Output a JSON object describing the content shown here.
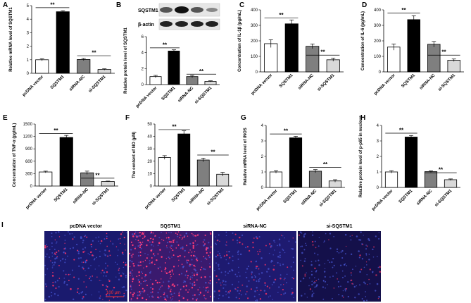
{
  "figure": {
    "colors": {
      "pcDNA vector": "#ffffff",
      "SQSTM1": "#000000",
      "siRNA-NC": "#7f7f7f",
      "si-SQSTM1": "#d9d9d9"
    },
    "significance_mark": "**",
    "blot": {
      "labels": [
        "SQSTM1",
        "β-actin"
      ]
    },
    "images": {
      "letter": "I",
      "labels": [
        "pcDNA vector",
        "SQSTM1",
        "siRNA-NC",
        "si-SQSTM1"
      ],
      "scale_bar": "100 μm"
    }
  },
  "chart_data": [
    {
      "panel": "A",
      "type": "bar",
      "categories": [
        "pcDNA vector",
        "SQSTM1",
        "siRNA-NC",
        "si-SQSTM1"
      ],
      "values": [
        1.0,
        4.55,
        1.02,
        0.28
      ],
      "errors": [
        0.08,
        0.08,
        0.08,
        0.05
      ],
      "ylabel": "Relative mRNA level of SQSTM1",
      "ylim": [
        0,
        5
      ],
      "yticks": [
        0,
        1,
        2,
        3,
        4,
        5
      ],
      "ytick_labels": [
        "0",
        "1",
        "2",
        "3",
        "4",
        "5"
      ],
      "sig": [
        [
          0,
          1,
          4.85
        ],
        [
          2,
          3,
          1.3
        ]
      ]
    },
    {
      "panel": "B",
      "type": "bar",
      "categories": [
        "pcDNA vector",
        "SQSTM1",
        "siRNA-NC",
        "si-SQSTM1"
      ],
      "values": [
        1.0,
        4.2,
        1.0,
        0.4
      ],
      "errors": [
        0.15,
        0.15,
        0.15,
        0.07
      ],
      "ylabel": "Relative protein level of SQSTM1",
      "ylim": [
        0,
        6
      ],
      "yticks": [
        0,
        2,
        4,
        6
      ],
      "ytick_labels": [
        "0",
        "2",
        "4",
        "6"
      ],
      "sig": [
        [
          0,
          1,
          4.6
        ],
        [
          2,
          3,
          1.3
        ]
      ]
    },
    {
      "panel": "C",
      "type": "bar",
      "categories": [
        "pcDNA vector",
        "SQSTM1",
        "siRNA-NC",
        "si-SQSTM1"
      ],
      "values": [
        182,
        310,
        165,
        78
      ],
      "errors": [
        25,
        25,
        15,
        10
      ],
      "ylabel": "Concentration of IL-1β (pg/mL)",
      "ylim": [
        0,
        400
      ],
      "yticks": [
        0,
        100,
        200,
        300,
        400
      ],
      "ytick_labels": [
        "0",
        "100",
        "200",
        "300",
        "400"
      ],
      "sig": [
        [
          0,
          1,
          348
        ],
        [
          2,
          3,
          108
        ]
      ]
    },
    {
      "panel": "D",
      "type": "bar",
      "categories": [
        "pcDNA vector",
        "SQSTM1",
        "siRNA-NC",
        "si-SQSTM1"
      ],
      "values": [
        160,
        337,
        178,
        75
      ],
      "errors": [
        20,
        25,
        18,
        8
      ],
      "ylabel": "Concentration of IL-6 (pg/mL)",
      "ylim": [
        0,
        400
      ],
      "yticks": [
        0,
        100,
        200,
        300,
        400
      ],
      "ytick_labels": [
        "0",
        "100",
        "200",
        "300",
        "400"
      ],
      "sig": [
        [
          0,
          1,
          380
        ],
        [
          2,
          3,
          108
        ]
      ]
    },
    {
      "panel": "E",
      "type": "bar",
      "categories": [
        "pcDNA vector",
        "SQSTM1",
        "siRNA-NC",
        "si-SQSTM1"
      ],
      "values": [
        340,
        1175,
        320,
        110
      ],
      "errors": [
        20,
        50,
        40,
        10
      ],
      "ylabel": "Concentration of TNF-α (pg/mL)",
      "ylim": [
        0,
        1500
      ],
      "yticks": [
        0,
        300,
        600,
        900,
        1200,
        1500
      ],
      "ytick_labels": [
        "0",
        "300",
        "600",
        "900",
        "1200",
        "1500"
      ],
      "sig": [
        [
          0,
          1,
          1270
        ],
        [
          2,
          3,
          190
        ]
      ]
    },
    {
      "panel": "F",
      "type": "bar",
      "categories": [
        "pcDNA vector",
        "SQSTM1",
        "siRNA-NC",
        "si-SQSTM1"
      ],
      "values": [
        23,
        42,
        21,
        9.5
      ],
      "errors": [
        1.5,
        2.5,
        1.5,
        1.5
      ],
      "ylabel": "The content of NO (μM)",
      "ylim": [
        0,
        50
      ],
      "yticks": [
        0,
        10,
        20,
        30,
        40,
        50
      ],
      "ytick_labels": [
        "0",
        "10",
        "20",
        "30",
        "40",
        "50"
      ],
      "sig": [
        [
          0,
          1,
          45.5
        ],
        [
          2,
          3,
          25
        ]
      ]
    },
    {
      "panel": "G",
      "type": "bar",
      "categories": [
        "pcDNA vector",
        "SQSTM1",
        "siRNA-NC",
        "si-SQSTM1"
      ],
      "values": [
        1.0,
        3.2,
        1.05,
        0.42
      ],
      "errors": [
        0.08,
        0.1,
        0.1,
        0.08
      ],
      "ylabel": "Relative mRNA level of iNOS",
      "ylim": [
        0,
        4
      ],
      "yticks": [
        0,
        1,
        2,
        3,
        4
      ],
      "ytick_labels": [
        "0",
        "1",
        "2",
        "3",
        "4"
      ],
      "sig": [
        [
          0,
          1,
          3.45
        ],
        [
          2,
          3,
          1.3
        ]
      ]
    },
    {
      "panel": "H",
      "type": "bar",
      "categories": [
        "pcDNA vector",
        "SQSTM1",
        "siRNA-NC",
        "si-SQSTM1"
      ],
      "values": [
        1.0,
        3.25,
        1.02,
        0.5
      ],
      "errors": [
        0.08,
        0.1,
        0.05,
        0.05
      ],
      "ylabel": "Relative protein level of p-p65 in nucleus",
      "ylim": [
        0,
        4
      ],
      "yticks": [
        0,
        1,
        2,
        3,
        4
      ],
      "ytick_labels": [
        "0",
        "1",
        "2",
        "3",
        "4"
      ],
      "sig": [
        [
          0,
          1,
          3.5
        ],
        [
          2,
          3,
          0.95
        ]
      ]
    }
  ]
}
